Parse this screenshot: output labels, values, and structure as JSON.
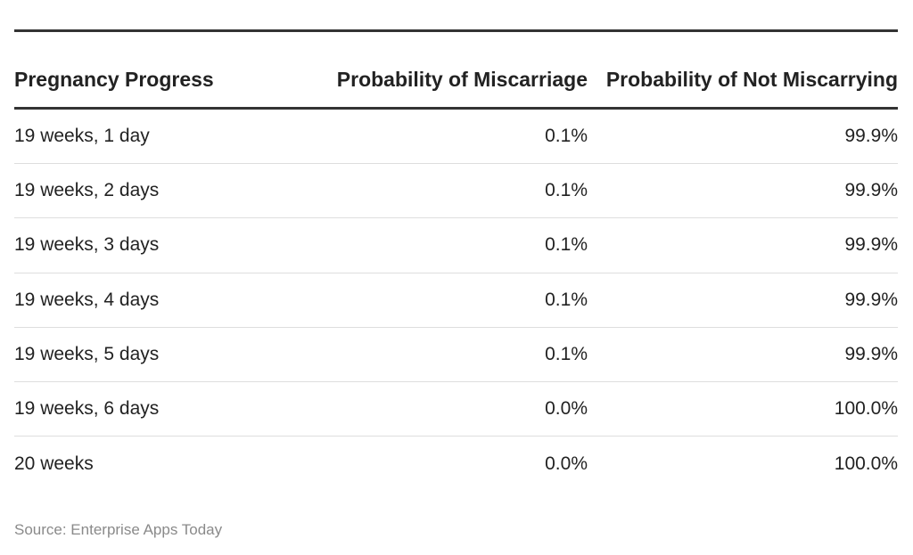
{
  "chart_data": {
    "type": "table",
    "columns": [
      "Pregnancy Progress",
      "Probability of Miscarriage",
      "Probability of Not Miscarrying"
    ],
    "rows": [
      [
        "19 weeks, 1 day",
        "0.1%",
        "99.9%"
      ],
      [
        "19 weeks, 2 days",
        "0.1%",
        "99.9%"
      ],
      [
        "19 weeks, 3 days",
        "0.1%",
        "99.9%"
      ],
      [
        "19 weeks, 4 days",
        "0.1%",
        "99.9%"
      ],
      [
        "19 weeks, 5 days",
        "0.1%",
        "99.9%"
      ],
      [
        "19 weeks, 6 days",
        "0.0%",
        "100.0%"
      ],
      [
        "20 weeks",
        "0.0%",
        "100.0%"
      ]
    ]
  },
  "source": "Source: Enterprise Apps Today"
}
